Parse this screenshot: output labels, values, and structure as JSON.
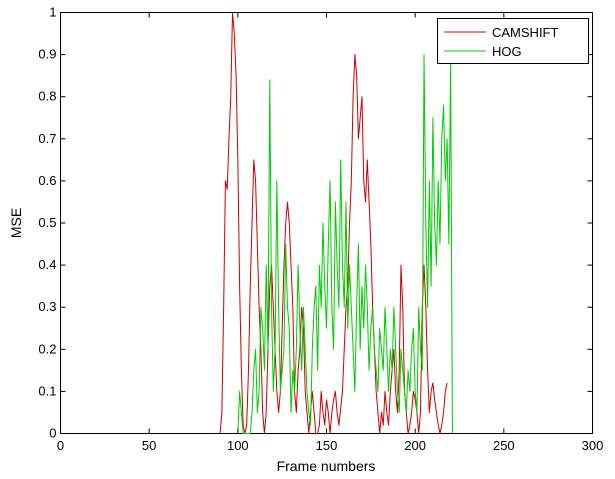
{
  "chart_data": {
    "type": "line",
    "title": "",
    "xlabel": "Frame numbers",
    "ylabel": "MSE",
    "xlim": [
      0,
      300
    ],
    "ylim": [
      0,
      1
    ],
    "xticks": [
      0,
      50,
      100,
      150,
      200,
      250,
      300
    ],
    "yticks": [
      0,
      0.1,
      0.2,
      0.3,
      0.4,
      0.5,
      0.6,
      0.7,
      0.8,
      0.9,
      1
    ],
    "ytick_labels": [
      "0",
      "0.1",
      "0.2",
      "0.3",
      "0.4",
      "0.5",
      "0.6",
      "0.7",
      "0.8",
      "0.9",
      "1"
    ],
    "grid": false,
    "legend_position": "top-right",
    "series": [
      {
        "name": "CAMSHIFT",
        "color": "#cc0000",
        "x": [
          90,
          91,
          92,
          93,
          94,
          95,
          96,
          97,
          98,
          99,
          100,
          101,
          102,
          103,
          104,
          105,
          106,
          107,
          108,
          109,
          110,
          111,
          112,
          113,
          114,
          115,
          116,
          117,
          118,
          119,
          120,
          121,
          122,
          123,
          124,
          125,
          126,
          127,
          128,
          129,
          130,
          131,
          132,
          133,
          134,
          135,
          136,
          137,
          138,
          139,
          140,
          141,
          142,
          143,
          144,
          145,
          146,
          147,
          148,
          149,
          150,
          151,
          152,
          153,
          154,
          155,
          156,
          157,
          158,
          159,
          160,
          161,
          162,
          163,
          164,
          165,
          166,
          167,
          168,
          169,
          170,
          171,
          172,
          173,
          174,
          175,
          176,
          177,
          178,
          179,
          180,
          181,
          182,
          183,
          184,
          185,
          186,
          187,
          188,
          189,
          190,
          191,
          192,
          193,
          194,
          195,
          196,
          197,
          198,
          199,
          200,
          201,
          202,
          203,
          204,
          205,
          206,
          207,
          208,
          209,
          210,
          211,
          212,
          213,
          214,
          215,
          216,
          217,
          218
        ],
        "y": [
          0,
          0.05,
          0.3,
          0.6,
          0.58,
          0.7,
          0.8,
          1.0,
          0.95,
          0.85,
          0.65,
          0.35,
          0.15,
          0.02,
          0,
          0.02,
          0.15,
          0.35,
          0.5,
          0.65,
          0.6,
          0.45,
          0.3,
          0.2,
          0.05,
          0,
          0.05,
          0.2,
          0.35,
          0.4,
          0.3,
          0.2,
          0.1,
          0.05,
          0.1,
          0.25,
          0.4,
          0.5,
          0.55,
          0.5,
          0.4,
          0.3,
          0.1,
          0.05,
          0.15,
          0.2,
          0.3,
          0.25,
          0.1,
          0.05,
          0,
          0.05,
          0.1,
          0.05,
          0,
          0,
          0.02,
          0.1,
          0.05,
          0.02,
          0.08,
          0.05,
          0,
          0.05,
          0.08,
          0.1,
          0.05,
          0.02,
          0.06,
          0.1,
          0.2,
          0.3,
          0.35,
          0.5,
          0.6,
          0.8,
          0.9,
          0.85,
          0.7,
          0.75,
          0.8,
          0.6,
          0.55,
          0.65,
          0.55,
          0.45,
          0.3,
          0.2,
          0.1,
          0.05,
          0,
          0.05,
          0.02,
          0.1,
          0.05,
          0.02,
          0.1,
          0.15,
          0.2,
          0.1,
          0.05,
          0.15,
          0.4,
          0.3,
          0.1,
          0.05,
          0,
          0.02,
          0.05,
          0.1,
          0.08,
          0.05,
          0,
          0.05,
          0.3,
          0.4,
          0.3,
          0.15,
          0.05,
          0.1,
          0.12,
          0.08,
          0.05,
          0.02,
          0,
          0.02,
          0.05,
          0.1,
          0.12
        ]
      },
      {
        "name": "HOG",
        "color": "#00cc00",
        "x": [
          100,
          101,
          102,
          103,
          104,
          105,
          106,
          107,
          108,
          109,
          110,
          111,
          112,
          113,
          114,
          115,
          116,
          117,
          118,
          119,
          120,
          121,
          122,
          123,
          124,
          125,
          126,
          127,
          128,
          129,
          130,
          131,
          132,
          133,
          134,
          135,
          136,
          137,
          138,
          139,
          140,
          141,
          142,
          143,
          144,
          145,
          146,
          147,
          148,
          149,
          150,
          151,
          152,
          153,
          154,
          155,
          156,
          157,
          158,
          159,
          160,
          161,
          162,
          163,
          164,
          165,
          166,
          167,
          168,
          169,
          170,
          171,
          172,
          173,
          174,
          175,
          176,
          177,
          178,
          179,
          180,
          181,
          182,
          183,
          184,
          185,
          186,
          187,
          188,
          189,
          190,
          191,
          192,
          193,
          194,
          195,
          196,
          197,
          198,
          199,
          200,
          201,
          202,
          203,
          204,
          205,
          206,
          207,
          208,
          209,
          210,
          211,
          212,
          213,
          214,
          215,
          216,
          217,
          218,
          219,
          220,
          221
        ],
        "y": [
          0,
          0.1,
          0.05,
          0,
          0,
          0,
          0,
          0,
          0.05,
          0.15,
          0.2,
          0.05,
          0.1,
          0.3,
          0.25,
          0.15,
          0.4,
          0.2,
          0.84,
          0.3,
          0.1,
          0.2,
          0.6,
          0.3,
          0.1,
          0.15,
          0.2,
          0.45,
          0.3,
          0.25,
          0.05,
          0.15,
          0.1,
          0.2,
          0.4,
          0.25,
          0.15,
          0.3,
          0.2,
          0.1,
          0.05,
          0.02,
          0.2,
          0.3,
          0.35,
          0.15,
          0.4,
          0.3,
          0.5,
          0.35,
          0.25,
          0.45,
          0.6,
          0.3,
          0.2,
          0.55,
          0.4,
          0.3,
          0.65,
          0.4,
          0.3,
          0.55,
          0.25,
          0.4,
          0.3,
          0.2,
          0.1,
          0.3,
          0.45,
          0.2,
          0.35,
          0.25,
          0.4,
          0.3,
          0.15,
          0.25,
          0.3,
          0.2,
          0.15,
          0.1,
          0.25,
          0.2,
          0.15,
          0.3,
          0.2,
          0.1,
          0.2,
          0.15,
          0.3,
          0.2,
          0.1,
          0.05,
          0.2,
          0.15,
          0.1,
          0.05,
          0.15,
          0.1,
          0.2,
          0.25,
          0.1,
          0.05,
          0.3,
          0.2,
          0.15,
          0.9,
          0.5,
          0.3,
          0.6,
          0.35,
          0.75,
          0.5,
          0.4,
          0.6,
          0.45,
          0.7,
          0.78,
          0.6,
          0.7,
          0.45,
          0.88,
          0
        ]
      }
    ]
  }
}
